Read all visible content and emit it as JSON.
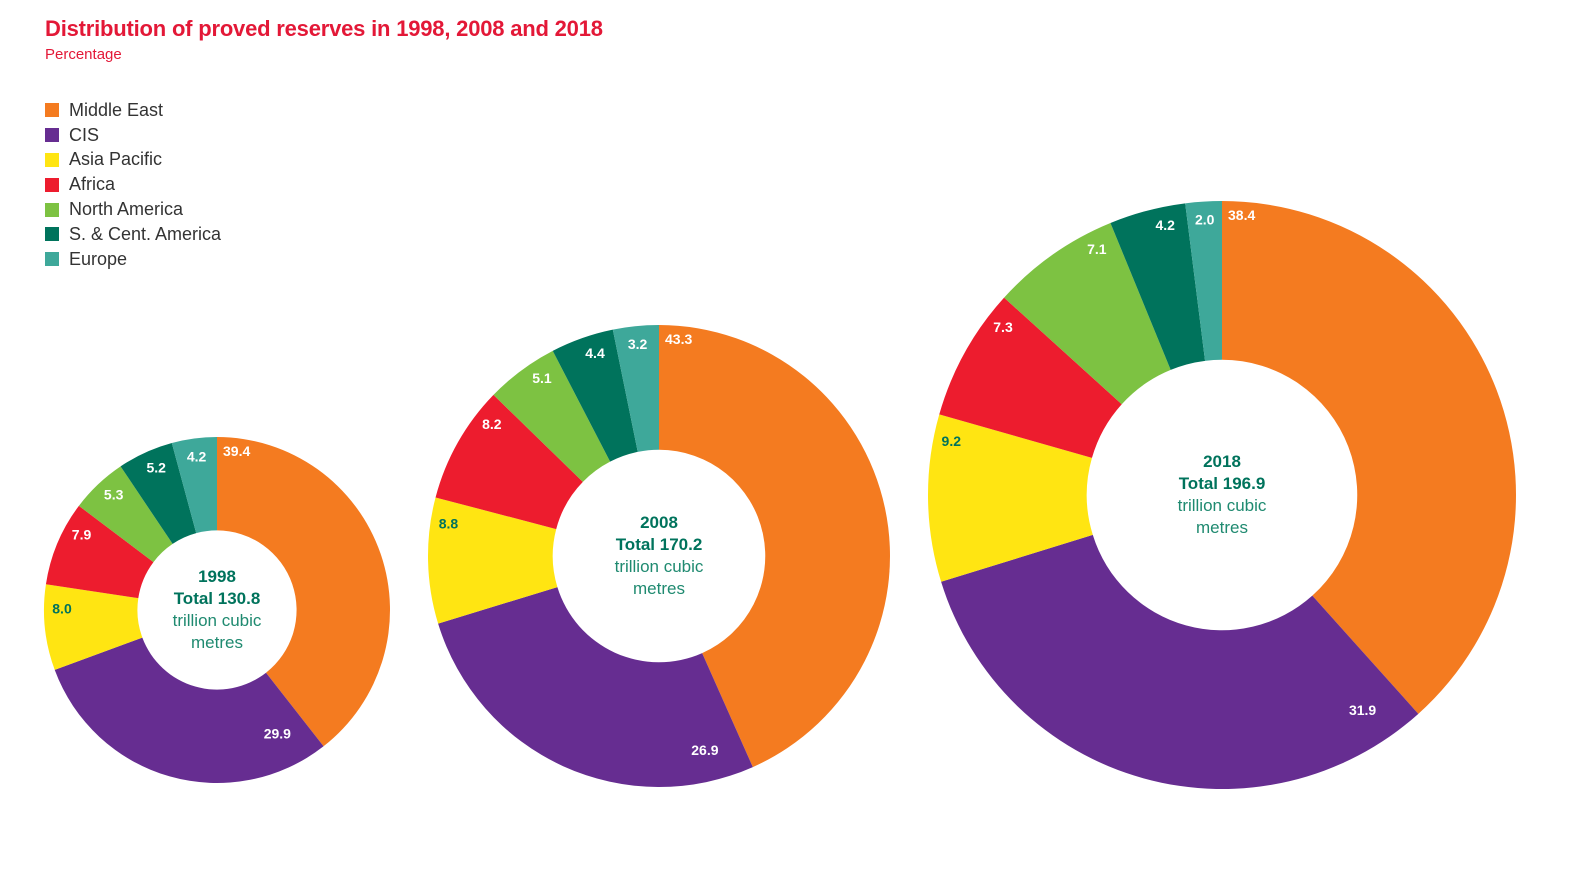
{
  "title": "Distribution of proved reserves in 1998, 2008 and 2018",
  "subtitle": "Percentage",
  "legend": [
    {
      "label": "Middle East",
      "color": "#F47B20"
    },
    {
      "label": "CIS",
      "color": "#662D91"
    },
    {
      "label": "Asia Pacific",
      "color": "#FFE512"
    },
    {
      "label": "Africa",
      "color": "#ED1C2E"
    },
    {
      "label": "North America",
      "color": "#7DC242"
    },
    {
      "label": "S. & Cent. America",
      "color": "#00735C"
    },
    {
      "label": "Europe",
      "color": "#3EA89A"
    }
  ],
  "chart_data": [
    {
      "type": "pie",
      "variant": "donut",
      "year": "1998",
      "center_title": "1998",
      "center_total": "Total 130.8",
      "center_unit_line1": "trillion cubic",
      "center_unit_line2": "metres",
      "total": 130.8,
      "unit": "trillion cubic metres",
      "categories": [
        "Middle East",
        "CIS",
        "Asia Pacific",
        "Africa",
        "North America",
        "S. & Cent. America",
        "Europe"
      ],
      "values": [
        39.4,
        29.9,
        8.0,
        7.9,
        5.3,
        5.2,
        4.2
      ],
      "labels": [
        "39.4",
        "29.9",
        "8.0",
        "7.9",
        "5.3",
        "5.2",
        "4.2"
      ]
    },
    {
      "type": "pie",
      "variant": "donut",
      "year": "2008",
      "center_title": "2008",
      "center_total": "Total 170.2",
      "center_unit_line1": "trillion cubic",
      "center_unit_line2": "metres",
      "total": 170.2,
      "unit": "trillion cubic metres",
      "categories": [
        "Middle East",
        "CIS",
        "Asia Pacific",
        "Africa",
        "North America",
        "S. & Cent. America",
        "Europe"
      ],
      "values": [
        43.3,
        26.9,
        8.8,
        8.2,
        5.1,
        4.4,
        3.2
      ],
      "labels": [
        "43.3",
        "26.9",
        "8.8",
        "8.2",
        "5.1",
        "4.4",
        "3.2"
      ]
    },
    {
      "type": "pie",
      "variant": "donut",
      "year": "2018",
      "center_title": "2018",
      "center_total": "Total 196.9",
      "center_unit_line1": "trillion cubic",
      "center_unit_line2": "metres",
      "total": 196.9,
      "unit": "trillion cubic metres",
      "categories": [
        "Middle East",
        "CIS",
        "Asia Pacific",
        "Africa",
        "North America",
        "S. & Cent. America",
        "Europe"
      ],
      "values": [
        38.4,
        31.9,
        9.2,
        7.3,
        7.1,
        4.2,
        2.0
      ],
      "labels": [
        "38.4",
        "31.9",
        "9.2",
        "7.3",
        "7.1",
        "4.2",
        "2.0"
      ]
    }
  ]
}
